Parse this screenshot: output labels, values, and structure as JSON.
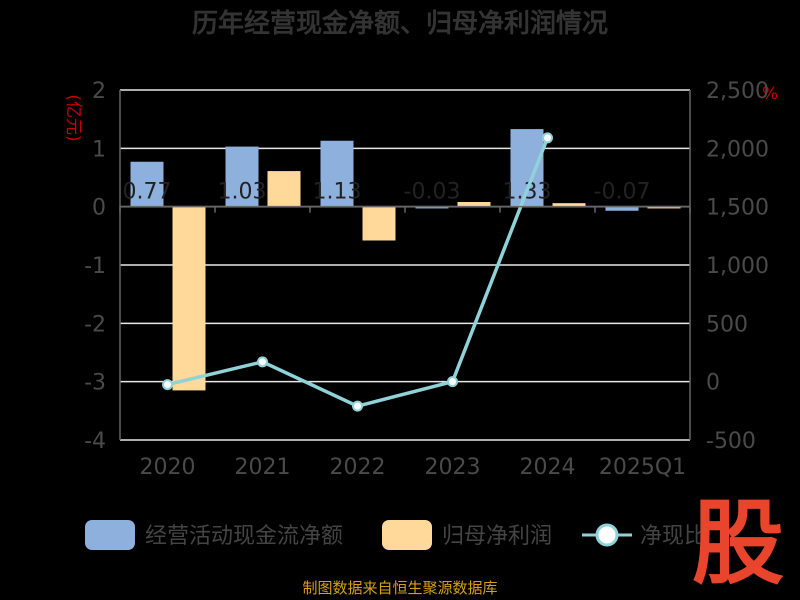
{
  "title": "历年经营现金净额、归母净利润情况",
  "left_unit": "(亿元)",
  "right_unit": "%",
  "source": "制图数据来自恒生聚源数据库",
  "logo_text": "股",
  "colors": {
    "cash_flow": "#8eb0dd",
    "net_profit": "#ffd99a",
    "ratio_line": "#8fd3d8",
    "grid": "#e8e8e8",
    "axis": "#666666"
  },
  "chart_data": {
    "type": "bar",
    "title": "历年经营现金净额、归母净利润情况",
    "categories": [
      "2020",
      "2021",
      "2022",
      "2023",
      "2024",
      "2025Q1"
    ],
    "left_axis": {
      "label": "(亿元)",
      "range": [
        -4,
        2
      ],
      "ticks": [
        2,
        1,
        0,
        -1,
        -2,
        -3,
        -4
      ]
    },
    "right_axis": {
      "label": "%",
      "range": [
        -500,
        2500
      ],
      "ticks": [
        "2,500",
        "2,000",
        "1,500",
        "1,000",
        "500",
        "0",
        "-500"
      ]
    },
    "grid": true,
    "legend_position": "bottom",
    "series": [
      {
        "name": "经营活动现金流净额",
        "type": "bar",
        "axis": "left",
        "values": [
          0.77,
          1.03,
          1.13,
          -0.03,
          1.33,
          -0.07
        ],
        "labels": [
          "0.77",
          "1.03",
          "1.13",
          "-0.03",
          "1.33",
          "-0.07"
        ]
      },
      {
        "name": "归母净利润",
        "type": "bar",
        "axis": "left",
        "values": [
          -3.15,
          0.61,
          -0.58,
          0.08,
          0.06,
          -0.03
        ]
      },
      {
        "name": "净现比",
        "type": "line",
        "axis": "right",
        "values": [
          -25,
          170,
          -210,
          0,
          2090,
          null
        ]
      }
    ]
  }
}
